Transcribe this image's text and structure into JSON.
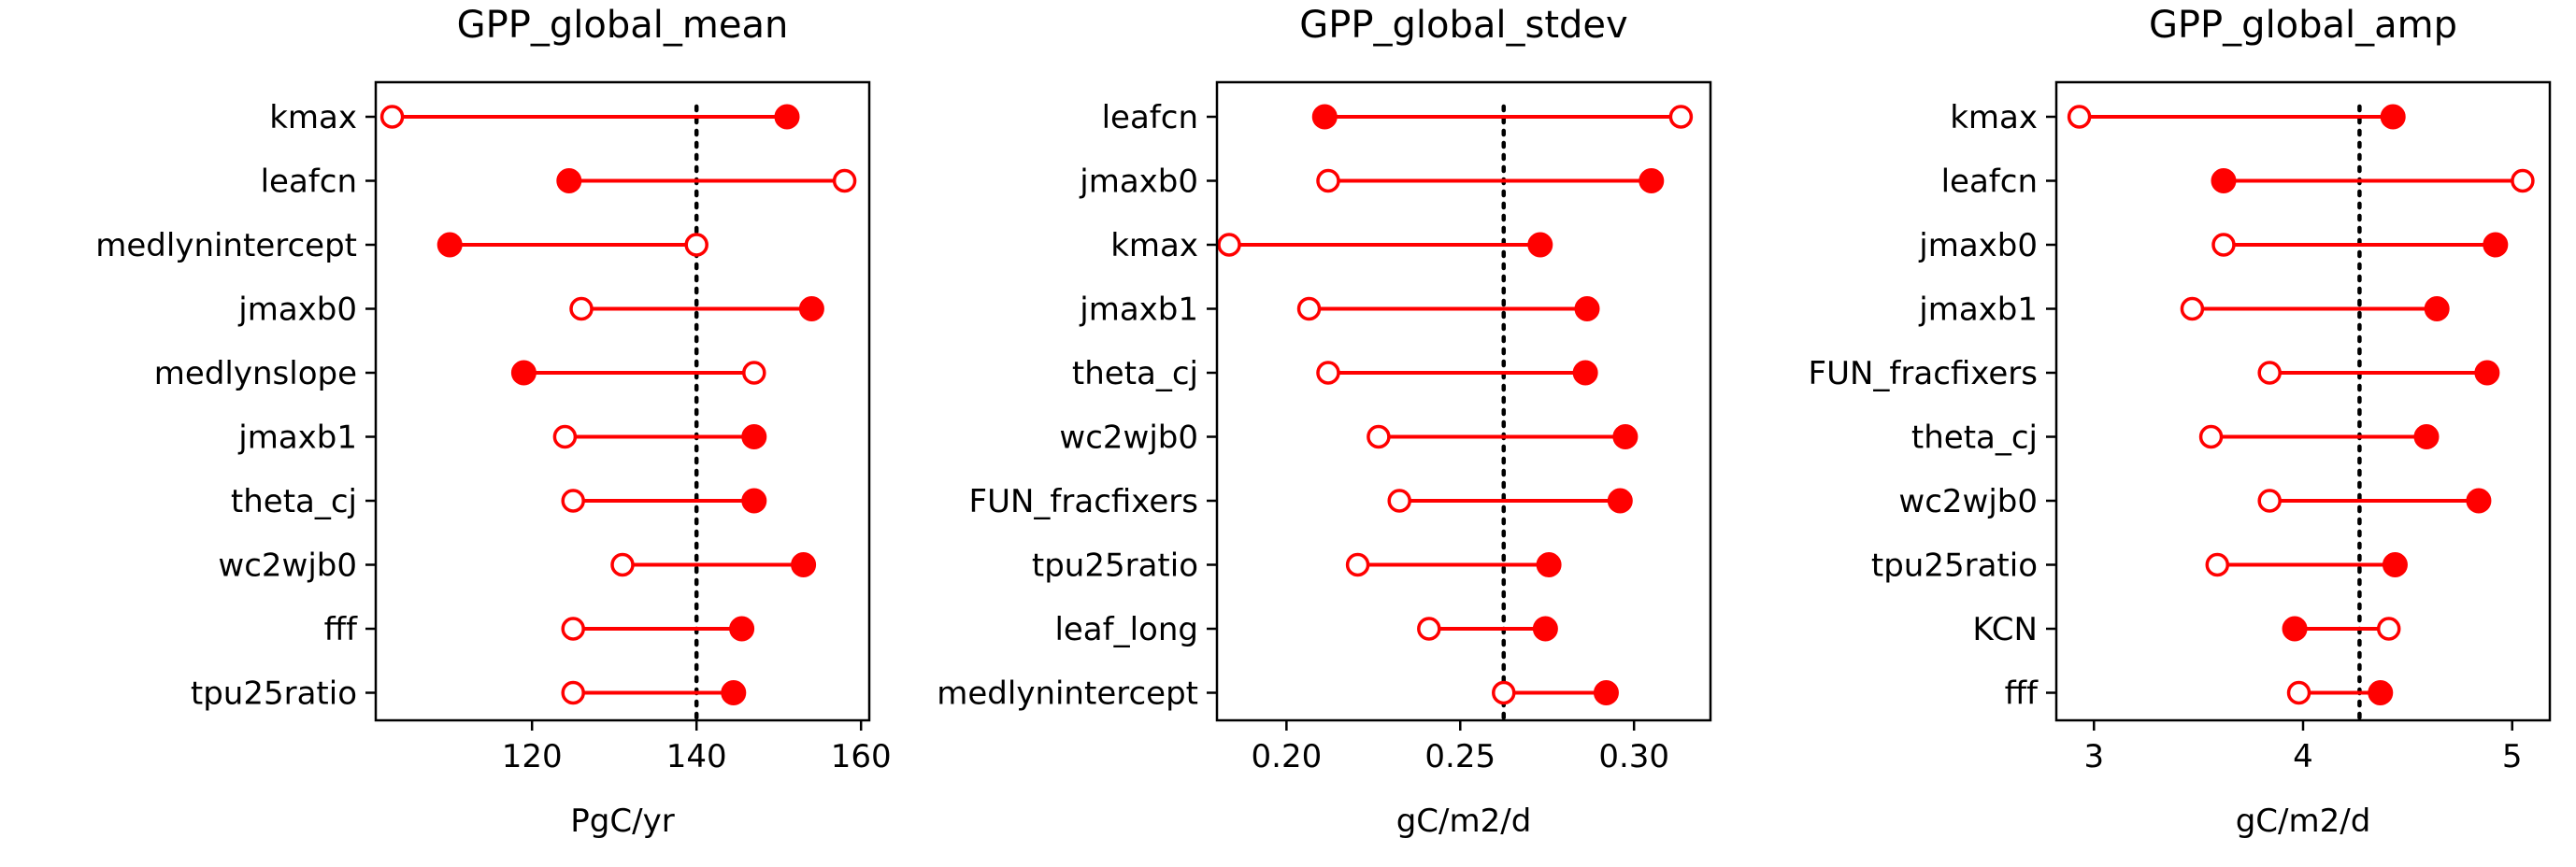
{
  "chart_data": [
    {
      "type": "dumbbell",
      "title": "GPP_global_mean",
      "xlabel": "PgC/yr",
      "xlim": [
        101,
        161
      ],
      "xticks": [
        120,
        140,
        160
      ],
      "reference": 140,
      "categories": [
        "kmax",
        "leafcn",
        "medlynintercept",
        "jmaxb0",
        "medlynslope",
        "jmaxb1",
        "theta_cj",
        "wc2wjb0",
        "fff",
        "tpu25ratio"
      ],
      "series": [
        {
          "marker": "open",
          "values": [
            103,
            158,
            140,
            126,
            147,
            124,
            125,
            131,
            125,
            125
          ]
        },
        {
          "marker": "filled",
          "values": [
            151,
            124.5,
            110,
            154,
            119,
            147,
            147,
            153,
            145.5,
            144.5
          ]
        }
      ]
    },
    {
      "type": "dumbbell",
      "title": "GPP_global_stdev",
      "xlabel": "gC/m2/d",
      "xlim": [
        0.18,
        0.322
      ],
      "xticks": [
        0.2,
        0.25,
        0.3
      ],
      "xtick_labels": [
        "0.20",
        "0.25",
        "0.30"
      ],
      "reference": 0.2625,
      "categories": [
        "leafcn",
        "jmaxb0",
        "kmax",
        "jmaxb1",
        "theta_cj",
        "wc2wjb0",
        "FUN_fracfixers",
        "tpu25ratio",
        "leaf_long",
        "medlynintercept"
      ],
      "series": [
        {
          "marker": "open",
          "values": [
            0.3135,
            0.212,
            0.1835,
            0.2065,
            0.212,
            0.2265,
            0.2325,
            0.2205,
            0.241,
            0.2625
          ]
        },
        {
          "marker": "filled",
          "values": [
            0.211,
            0.305,
            0.273,
            0.2865,
            0.286,
            0.2975,
            0.296,
            0.2755,
            0.2745,
            0.292
          ]
        }
      ]
    },
    {
      "type": "dumbbell",
      "title": "GPP_global_amp",
      "xlabel": "gC/m2/d",
      "xlim": [
        2.82,
        5.18
      ],
      "xticks": [
        3,
        4,
        5
      ],
      "reference": 4.27,
      "categories": [
        "kmax",
        "leafcn",
        "jmaxb0",
        "jmaxb1",
        "FUN_fracfixers",
        "theta_cj",
        "wc2wjb0",
        "tpu25ratio",
        "KCN",
        "fff"
      ],
      "series": [
        {
          "marker": "open",
          "values": [
            2.93,
            5.05,
            3.62,
            3.47,
            3.84,
            3.56,
            3.84,
            3.59,
            4.41,
            3.98
          ]
        },
        {
          "marker": "filled",
          "values": [
            4.43,
            3.62,
            4.92,
            4.64,
            4.88,
            4.59,
            4.84,
            4.44,
            3.96,
            4.37
          ]
        }
      ]
    }
  ]
}
